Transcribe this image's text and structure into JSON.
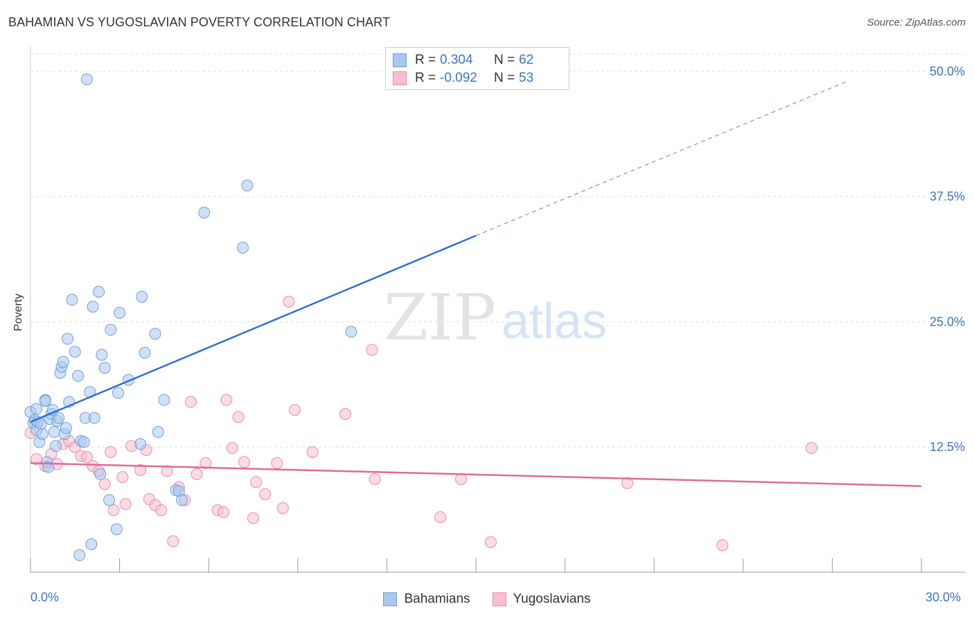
{
  "header": {
    "title": "BAHAMIAN VS YUGOSLAVIAN POVERTY CORRELATION CHART",
    "source": "Source: ZipAtlas.com"
  },
  "watermark": {
    "zip": "ZIP",
    "atlas": "atlas"
  },
  "stats": {
    "r_label": "R =",
    "n_label": "N =",
    "bahamian": {
      "r": "0.304",
      "n": "62"
    },
    "yugoslavian": {
      "r": "-0.092",
      "n": "53"
    }
  },
  "legend": {
    "bahamians": "Bahamians",
    "yugoslavians": "Yugoslavians"
  },
  "colors": {
    "blue_fill": "#a9c8f0",
    "blue_stroke": "#6f9fd8",
    "blue_line": "#2f6fcf",
    "pink_fill": "#f7bfd0",
    "pink_stroke": "#e88aa8",
    "pink_line": "#e06a95",
    "tick_text": "#3b74c9",
    "grid": "#dddddd"
  },
  "chart_data": {
    "type": "scatter",
    "title": "BAHAMIAN VS YUGOSLAVIAN POVERTY CORRELATION CHART",
    "xlabel": "",
    "ylabel": "Poverty",
    "xlim": [
      0,
      30
    ],
    "ylim": [
      0,
      52
    ],
    "x_tick_labels": [
      {
        "value": 0,
        "label": "0.0%"
      },
      {
        "value": 30,
        "label": "30.0%"
      }
    ],
    "y_ticks": [
      {
        "value": 12.5,
        "label": "12.5%"
      },
      {
        "value": 25,
        "label": "25.0%"
      },
      {
        "value": 37.5,
        "label": "37.5%"
      },
      {
        "value": 50,
        "label": "50.0%"
      }
    ],
    "x_minor_ticks": [
      0,
      3,
      6,
      9,
      12,
      15,
      18,
      21,
      24,
      27,
      30
    ],
    "series": [
      {
        "name": "Bahamians",
        "r": 0.304,
        "n": 62,
        "trend": {
          "x0": 0,
          "y0": 15.0,
          "x1": 15.0,
          "y1": 33.6,
          "dash_x1": 27.5,
          "dash_y1": 49.0
        },
        "points": [
          [
            0.0,
            16.0
          ],
          [
            0.1,
            14.9
          ],
          [
            0.15,
            15.2
          ],
          [
            0.2,
            14.2
          ],
          [
            0.25,
            15.0
          ],
          [
            0.3,
            13.0
          ],
          [
            0.4,
            13.8
          ],
          [
            0.5,
            17.2
          ],
          [
            0.55,
            11.0
          ],
          [
            0.6,
            10.5
          ],
          [
            0.65,
            15.3
          ],
          [
            0.7,
            15.8
          ],
          [
            0.75,
            16.2
          ],
          [
            0.8,
            14.0
          ],
          [
            0.85,
            12.6
          ],
          [
            0.9,
            15.1
          ],
          [
            0.95,
            15.4
          ],
          [
            1.0,
            19.9
          ],
          [
            1.05,
            20.5
          ],
          [
            1.1,
            21.0
          ],
          [
            1.15,
            13.8
          ],
          [
            1.2,
            14.4
          ],
          [
            1.25,
            23.3
          ],
          [
            1.3,
            17.0
          ],
          [
            1.4,
            27.2
          ],
          [
            1.5,
            22.0
          ],
          [
            1.6,
            19.6
          ],
          [
            1.7,
            13.1
          ],
          [
            1.8,
            13.0
          ],
          [
            1.85,
            15.4
          ],
          [
            1.9,
            49.2
          ],
          [
            2.0,
            18.0
          ],
          [
            2.05,
            2.8
          ],
          [
            2.1,
            26.5
          ],
          [
            2.15,
            15.4
          ],
          [
            2.3,
            28.0
          ],
          [
            2.35,
            9.8
          ],
          [
            2.4,
            21.7
          ],
          [
            2.5,
            20.4
          ],
          [
            2.65,
            7.2
          ],
          [
            2.7,
            24.2
          ],
          [
            2.9,
            4.3
          ],
          [
            2.95,
            17.9
          ],
          [
            3.0,
            25.9
          ],
          [
            3.3,
            19.2
          ],
          [
            3.7,
            12.8
          ],
          [
            3.75,
            27.5
          ],
          [
            3.85,
            21.9
          ],
          [
            4.2,
            23.8
          ],
          [
            4.3,
            14.0
          ],
          [
            4.5,
            17.2
          ],
          [
            4.9,
            8.2
          ],
          [
            5.0,
            8.1
          ],
          [
            5.1,
            7.2
          ],
          [
            5.85,
            35.9
          ],
          [
            7.15,
            32.4
          ],
          [
            7.3,
            38.6
          ],
          [
            10.8,
            24.0
          ],
          [
            0.2,
            16.3
          ],
          [
            1.65,
            1.7
          ],
          [
            0.35,
            14.8
          ],
          [
            0.5,
            17.1
          ]
        ]
      },
      {
        "name": "Yugoslavians",
        "r": -0.092,
        "n": 53,
        "trend": {
          "x0": 0,
          "y0": 10.9,
          "x1": 30,
          "y1": 8.6
        },
        "points": [
          [
            0.0,
            13.9
          ],
          [
            0.2,
            11.3
          ],
          [
            0.5,
            10.6
          ],
          [
            0.7,
            11.8
          ],
          [
            0.9,
            10.8
          ],
          [
            1.1,
            12.8
          ],
          [
            1.3,
            13.1
          ],
          [
            1.5,
            12.5
          ],
          [
            1.7,
            11.6
          ],
          [
            1.9,
            11.5
          ],
          [
            2.1,
            10.6
          ],
          [
            2.3,
            10.1
          ],
          [
            2.5,
            8.8
          ],
          [
            2.7,
            12.0
          ],
          [
            2.8,
            6.2
          ],
          [
            3.1,
            9.5
          ],
          [
            3.2,
            6.8
          ],
          [
            3.4,
            12.6
          ],
          [
            3.7,
            10.2
          ],
          [
            3.9,
            12.2
          ],
          [
            4.0,
            7.3
          ],
          [
            4.2,
            6.7
          ],
          [
            4.4,
            6.2
          ],
          [
            4.6,
            10.1
          ],
          [
            4.8,
            3.1
          ],
          [
            5.0,
            8.5
          ],
          [
            5.2,
            7.2
          ],
          [
            5.4,
            17.0
          ],
          [
            5.6,
            9.8
          ],
          [
            5.9,
            10.9
          ],
          [
            6.3,
            6.2
          ],
          [
            6.5,
            6.0
          ],
          [
            6.6,
            17.2
          ],
          [
            6.8,
            12.4
          ],
          [
            7.0,
            15.5
          ],
          [
            7.2,
            11.0
          ],
          [
            7.5,
            5.4
          ],
          [
            7.6,
            9.0
          ],
          [
            7.9,
            7.8
          ],
          [
            8.3,
            10.9
          ],
          [
            8.5,
            6.4
          ],
          [
            8.7,
            27.0
          ],
          [
            8.9,
            16.2
          ],
          [
            9.5,
            12.0
          ],
          [
            10.6,
            15.8
          ],
          [
            11.5,
            22.2
          ],
          [
            11.6,
            9.3
          ],
          [
            13.8,
            5.5
          ],
          [
            14.5,
            9.3
          ],
          [
            15.5,
            3.0
          ],
          [
            20.1,
            8.9
          ],
          [
            23.3,
            2.7
          ],
          [
            26.3,
            12.4
          ]
        ]
      }
    ]
  }
}
